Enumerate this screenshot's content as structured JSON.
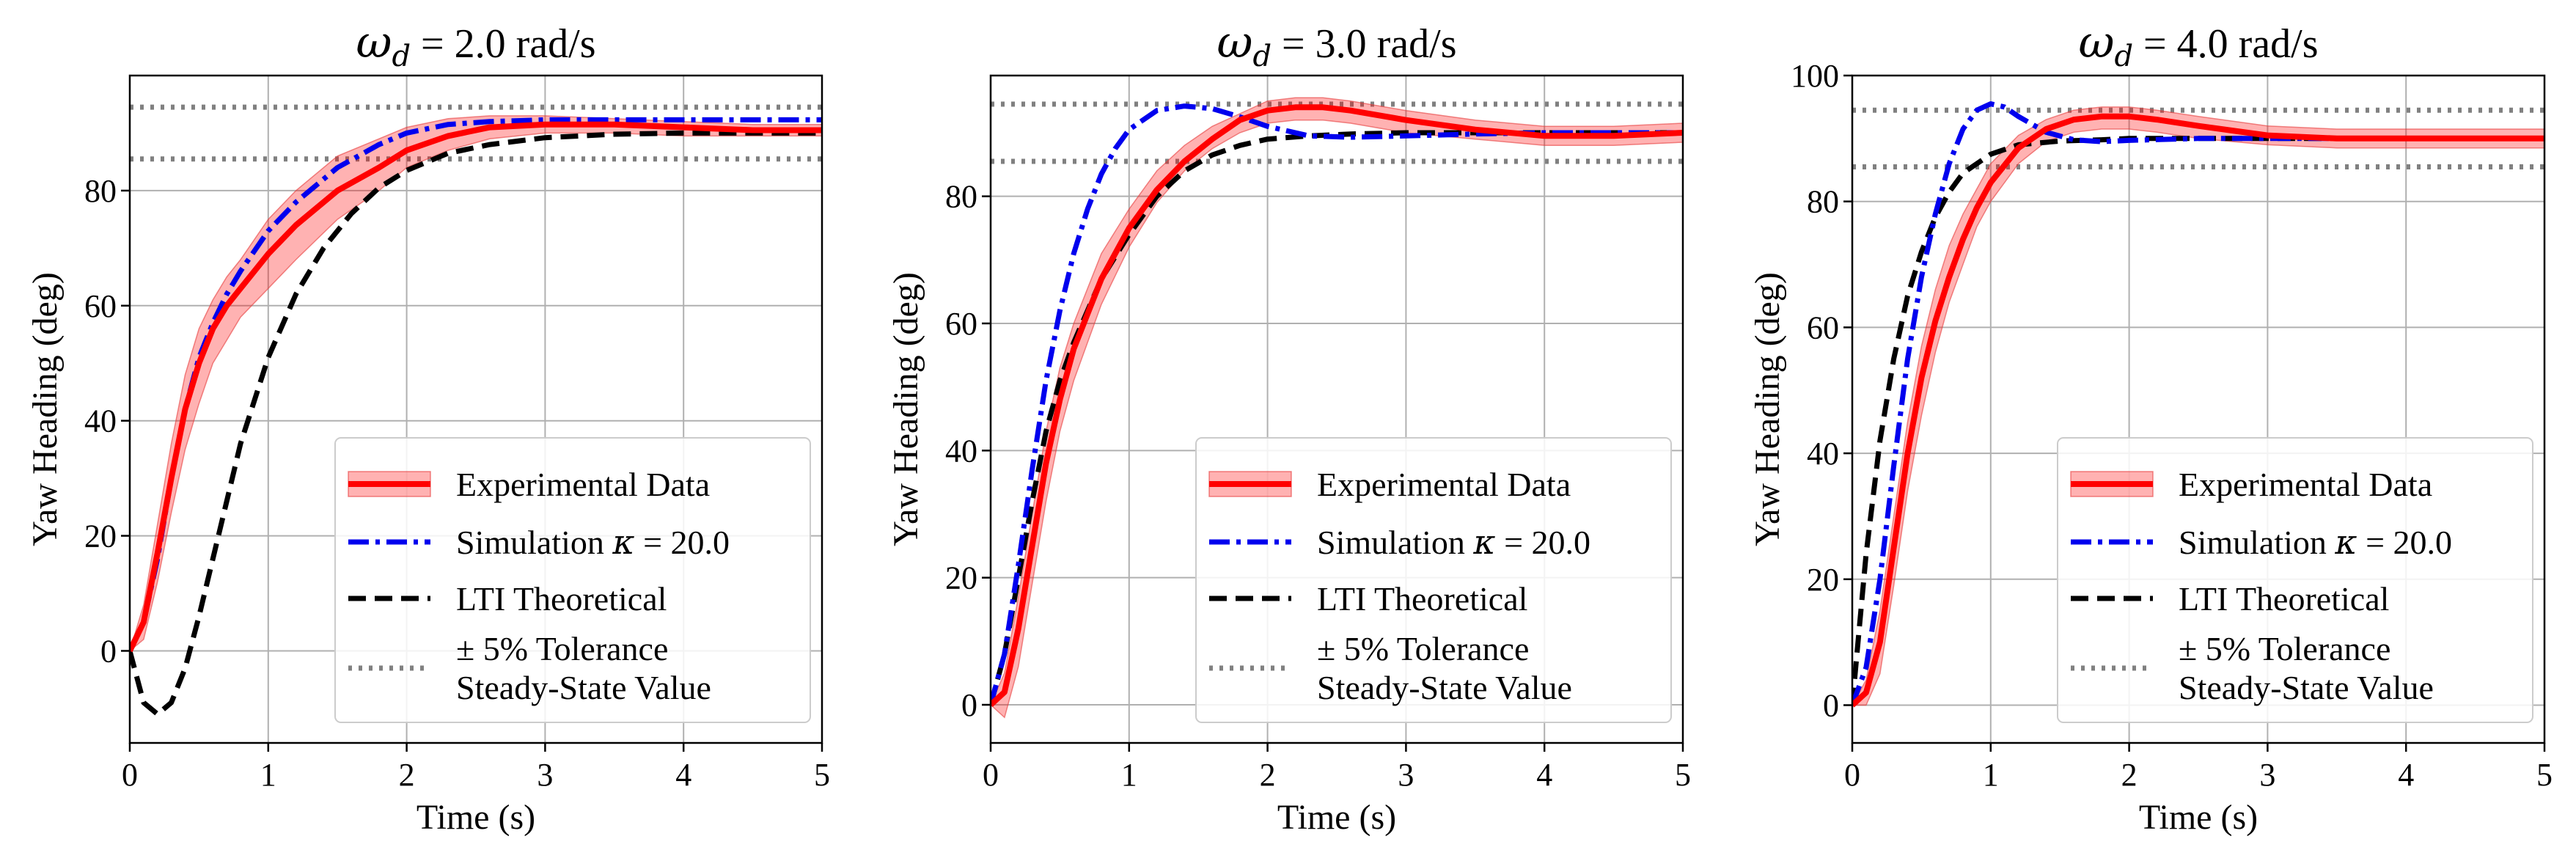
{
  "chart_data": [
    {
      "type": "line",
      "title_prefix": "ω",
      "title_sub": "d",
      "title_suffix": " = 2.0 rad/s",
      "xlabel": "Time (s)",
      "ylabel": "Yaw Heading (deg)",
      "xlim": [
        0,
        5
      ],
      "ylim": [
        -16,
        100
      ],
      "xticks": [
        0,
        1,
        2,
        3,
        4,
        5
      ],
      "yticks": [
        0,
        20,
        40,
        60,
        80
      ],
      "grid": true,
      "legend_position": "lower-right",
      "tolerance_lines": [
        85.5,
        94.5
      ],
      "series": [
        {
          "name": "Experimental Data",
          "color": "#ff0000",
          "style": "solid",
          "x": [
            0,
            0.1,
            0.2,
            0.3,
            0.4,
            0.5,
            0.6,
            0.7,
            0.8,
            1.0,
            1.2,
            1.5,
            1.8,
            2.0,
            2.3,
            2.6,
            3.0,
            3.5,
            4.0,
            4.5,
            5.0
          ],
          "y": [
            0,
            5,
            17,
            30,
            42,
            50,
            56,
            60,
            63,
            69,
            74,
            80,
            84,
            87,
            89.5,
            91,
            91.5,
            91.5,
            91,
            90.5,
            90.5
          ],
          "band_low": [
            0,
            2,
            12,
            24,
            35,
            43,
            50,
            54,
            58,
            63,
            68,
            75,
            80,
            84,
            87,
            89,
            90,
            90,
            89.5,
            89.5,
            89.5
          ],
          "band_high": [
            0,
            8,
            22,
            36,
            48,
            56,
            61,
            65,
            68,
            75,
            80,
            86,
            89,
            91,
            92.5,
            93,
            93,
            92.5,
            92,
            91.5,
            91.5
          ]
        },
        {
          "name": "Simulation κ = 20.0",
          "color": "#0000ee",
          "style": "dashdot",
          "x": [
            0,
            0.1,
            0.2,
            0.3,
            0.4,
            0.5,
            0.6,
            0.7,
            0.8,
            1.0,
            1.2,
            1.5,
            1.8,
            2.0,
            2.3,
            2.6,
            3.0,
            3.5,
            4.0,
            4.5,
            5.0
          ],
          "y": [
            0,
            5,
            16,
            30,
            42,
            51,
            57,
            62,
            66,
            73,
            78,
            84,
            88,
            90,
            91.5,
            92,
            92.3,
            92.3,
            92.3,
            92.3,
            92.3
          ]
        },
        {
          "name": "LTI Theoretical",
          "color": "#000000",
          "style": "dashed",
          "x": [
            0,
            0.1,
            0.2,
            0.3,
            0.4,
            0.5,
            0.6,
            0.7,
            0.8,
            1.0,
            1.2,
            1.4,
            1.6,
            1.8,
            2.0,
            2.3,
            2.6,
            3.0,
            3.5,
            4.0,
            4.5,
            5.0
          ],
          "y": [
            0,
            -9,
            -11,
            -9,
            -3,
            6,
            16,
            26,
            36,
            51,
            62,
            70,
            76,
            80.5,
            83.5,
            86.5,
            88,
            89.2,
            89.8,
            90,
            90,
            90
          ]
        },
        {
          "name": "± 5% Tolerance\nSteady-State Value",
          "color": "#808080",
          "style": "dotted"
        }
      ]
    },
    {
      "type": "line",
      "title_prefix": "ω",
      "title_sub": "d",
      "title_suffix": " = 3.0 rad/s",
      "xlabel": "Time (s)",
      "ylabel": "Yaw Heading (deg)",
      "xlim": [
        0,
        5
      ],
      "ylim": [
        -6,
        99
      ],
      "xticks": [
        0,
        1,
        2,
        3,
        4,
        5
      ],
      "yticks": [
        0,
        20,
        40,
        60,
        80
      ],
      "grid": true,
      "legend_position": "lower-right",
      "tolerance_lines": [
        85.5,
        94.5
      ],
      "series": [
        {
          "name": "Experimental Data",
          "color": "#ff0000",
          "style": "solid",
          "x": [
            0,
            0.1,
            0.2,
            0.3,
            0.4,
            0.5,
            0.6,
            0.8,
            1.0,
            1.2,
            1.4,
            1.6,
            1.8,
            2.0,
            2.2,
            2.4,
            2.6,
            3.0,
            3.5,
            4.0,
            4.5,
            5.0
          ],
          "y": [
            0,
            2,
            12,
            25,
            38,
            48,
            56,
            67,
            75,
            81,
            85.5,
            89,
            92,
            93.5,
            94,
            94,
            93.5,
            92,
            90.5,
            89.5,
            89.5,
            90
          ],
          "band_low": [
            0,
            -2,
            6,
            19,
            32,
            43,
            51,
            63,
            72,
            79,
            84,
            87.5,
            90,
            91.5,
            92,
            92,
            91.5,
            90,
            89,
            88,
            88,
            88.5
          ],
          "band_high": [
            0,
            5,
            17,
            30,
            43,
            53,
            60,
            71,
            78,
            84,
            88,
            91,
            93,
            95,
            95.5,
            95.5,
            95,
            93.5,
            92,
            91,
            91,
            91.5
          ]
        },
        {
          "name": "Simulation κ = 20.0",
          "color": "#0000ee",
          "style": "dashdot",
          "x": [
            0,
            0.1,
            0.2,
            0.3,
            0.4,
            0.5,
            0.6,
            0.7,
            0.8,
            0.9,
            1.0,
            1.2,
            1.4,
            1.6,
            1.8,
            2.0,
            2.3,
            2.6,
            3.0,
            3.5,
            4.0,
            4.5,
            5.0
          ],
          "y": [
            0,
            8,
            22,
            37,
            51,
            62,
            71,
            78,
            83.5,
            87.5,
            90.5,
            93.5,
            94.2,
            93.8,
            92.5,
            91,
            89.5,
            89.3,
            89.5,
            89.8,
            90,
            90,
            90
          ]
        },
        {
          "name": "LTI Theoretical",
          "color": "#000000",
          "style": "dashed",
          "x": [
            0,
            0.1,
            0.2,
            0.3,
            0.4,
            0.5,
            0.6,
            0.8,
            1.0,
            1.2,
            1.4,
            1.6,
            1.8,
            2.0,
            2.3,
            2.6,
            3.0,
            3.5,
            4.0,
            4.5,
            5.0
          ],
          "y": [
            0,
            8,
            20,
            32,
            43,
            51,
            57,
            67,
            74,
            80,
            84,
            86.5,
            88,
            89,
            89.5,
            89.8,
            90,
            90,
            90,
            90,
            90
          ]
        },
        {
          "name": "± 5% Tolerance\nSteady-State Value",
          "color": "#808080",
          "style": "dotted"
        }
      ]
    },
    {
      "type": "line",
      "title_prefix": "ω",
      "title_sub": "d",
      "title_suffix": " = 4.0 rad/s",
      "xlabel": "Time (s)",
      "ylabel": "Yaw Heading (deg)",
      "xlim": [
        0,
        5
      ],
      "ylim": [
        -6,
        100
      ],
      "xticks": [
        0,
        1,
        2,
        3,
        4,
        5
      ],
      "yticks": [
        0,
        20,
        40,
        60,
        80,
        100
      ],
      "grid": true,
      "legend_position": "lower-right",
      "tolerance_lines": [
        85.5,
        94.5
      ],
      "series": [
        {
          "name": "Experimental Data",
          "color": "#ff0000",
          "style": "solid",
          "x": [
            0,
            0.1,
            0.2,
            0.3,
            0.4,
            0.5,
            0.6,
            0.7,
            0.8,
            0.9,
            1.0,
            1.2,
            1.4,
            1.6,
            1.8,
            2.0,
            2.2,
            2.5,
            3.0,
            3.5,
            4.0,
            4.5,
            5.0
          ],
          "y": [
            0,
            2,
            10,
            25,
            40,
            52,
            61,
            68,
            74,
            79,
            83,
            88.5,
            91.5,
            93,
            93.5,
            93.5,
            93,
            92,
            90.5,
            90,
            90,
            90,
            90
          ],
          "band_low": [
            0,
            0,
            5,
            19,
            34,
            46,
            56,
            64,
            70,
            76,
            80,
            86,
            89.5,
            91,
            91.5,
            91.5,
            91,
            90,
            89,
            88.5,
            88.5,
            88.5,
            88.5
          ],
          "band_high": [
            0,
            4,
            15,
            30,
            45,
            57,
            66,
            73,
            78,
            82,
            86,
            90.5,
            93,
            94.5,
            95,
            95,
            94.5,
            93.5,
            92,
            91.5,
            91.5,
            91.5,
            91.5
          ]
        },
        {
          "name": "Simulation κ = 20.0",
          "color": "#0000ee",
          "style": "dashdot",
          "x": [
            0,
            0.1,
            0.2,
            0.3,
            0.4,
            0.5,
            0.6,
            0.7,
            0.8,
            0.9,
            1.0,
            1.1,
            1.2,
            1.4,
            1.6,
            1.8,
            2.0,
            2.5,
            3.0,
            4.0,
            5.0
          ],
          "y": [
            0,
            6,
            20,
            38,
            55,
            68,
            78,
            86,
            91.5,
            94.5,
            95.5,
            95,
            93.5,
            91,
            89.8,
            89.5,
            89.7,
            90,
            90,
            90,
            90
          ]
        },
        {
          "name": "LTI Theoretical",
          "color": "#000000",
          "style": "dashed",
          "x": [
            0,
            0.05,
            0.1,
            0.2,
            0.3,
            0.4,
            0.5,
            0.6,
            0.7,
            0.8,
            1.0,
            1.2,
            1.5,
            1.8,
            2.0,
            2.5,
            3.0,
            4.0,
            5.0
          ],
          "y": [
            0,
            12,
            24,
            42,
            55,
            65,
            72,
            77.5,
            81.5,
            84.5,
            87.5,
            89,
            89.6,
            89.8,
            90,
            90,
            90,
            90,
            90
          ]
        },
        {
          "name": "± 5% Tolerance\nSteady-State Value",
          "color": "#808080",
          "style": "dotted"
        }
      ]
    }
  ],
  "legend": {
    "experimental": "Experimental Data",
    "simulation_prefix": "Simulation ",
    "kappa": "κ",
    "simulation_suffix": " = 20.0",
    "lti": "LTI Theoretical",
    "tolerance_line1": "± 5% Tolerance",
    "tolerance_line2": "Steady-State Value"
  }
}
